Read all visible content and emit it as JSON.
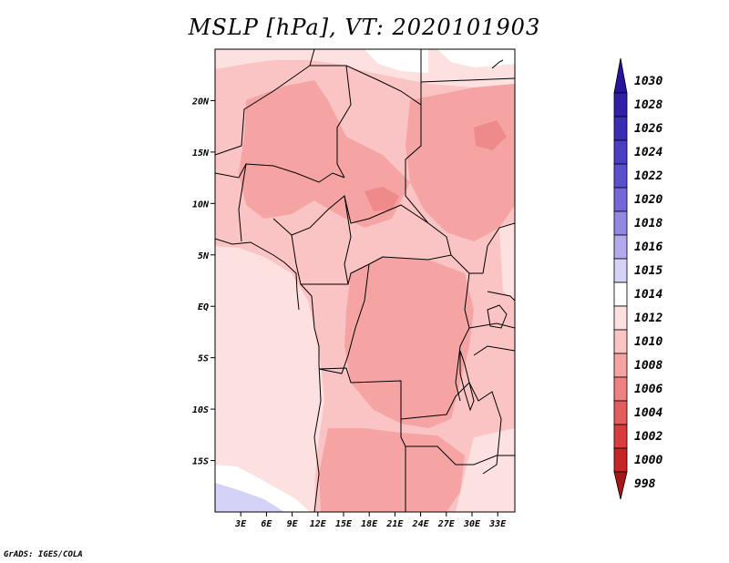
{
  "title": "MSLP [hPa], VT: 2020101903",
  "footer": "GrADS: IGES/COLA",
  "map": {
    "lon_range": [
      0,
      35
    ],
    "lat_range": [
      -20,
      25
    ],
    "lon_ticks": [
      {
        "value": 3,
        "label": "3E"
      },
      {
        "value": 6,
        "label": "6E"
      },
      {
        "value": 9,
        "label": "9E"
      },
      {
        "value": 12,
        "label": "12E"
      },
      {
        "value": 15,
        "label": "15E"
      },
      {
        "value": 18,
        "label": "18E"
      },
      {
        "value": 21,
        "label": "21E"
      },
      {
        "value": 24,
        "label": "24E"
      },
      {
        "value": 27,
        "label": "27E"
      },
      {
        "value": 30,
        "label": "30E"
      },
      {
        "value": 33,
        "label": "33E"
      }
    ],
    "lat_ticks": [
      {
        "value": 20,
        "label": "20N"
      },
      {
        "value": 15,
        "label": "15N"
      },
      {
        "value": 10,
        "label": "10N"
      },
      {
        "value": 5,
        "label": "5N"
      },
      {
        "value": 0,
        "label": "EQ"
      },
      {
        "value": -5,
        "label": "5S"
      },
      {
        "value": -10,
        "label": "10S"
      },
      {
        "value": -15,
        "label": "15S"
      }
    ]
  },
  "colorbar": {
    "levels": [
      {
        "label": "1030",
        "color": "#26159c"
      },
      {
        "label": "1028",
        "color": "#3020a8"
      },
      {
        "label": "1026",
        "color": "#3a2db5"
      },
      {
        "label": "1024",
        "color": "#4a3ec2"
      },
      {
        "label": "1022",
        "color": "#5a50cc"
      },
      {
        "label": "1020",
        "color": "#7468d8"
      },
      {
        "label": "1018",
        "color": "#9188e2"
      },
      {
        "label": "1016",
        "color": "#b1abee"
      },
      {
        "label": "1015",
        "color": "#d5d2f8"
      },
      {
        "label": "1014",
        "color": "#ffffff"
      },
      {
        "label": "1012",
        "color": "#fde1e1"
      },
      {
        "label": "1010",
        "color": "#fbc4c4"
      },
      {
        "label": "1008",
        "color": "#f5a3a3"
      },
      {
        "label": "1006",
        "color": "#ee8282"
      },
      {
        "label": "1004",
        "color": "#e45d5d"
      },
      {
        "label": "1002",
        "color": "#d83c3c"
      },
      {
        "label": "1000",
        "color": "#c52525"
      },
      {
        "label": "998",
        "color": "#a61616"
      }
    ]
  }
}
